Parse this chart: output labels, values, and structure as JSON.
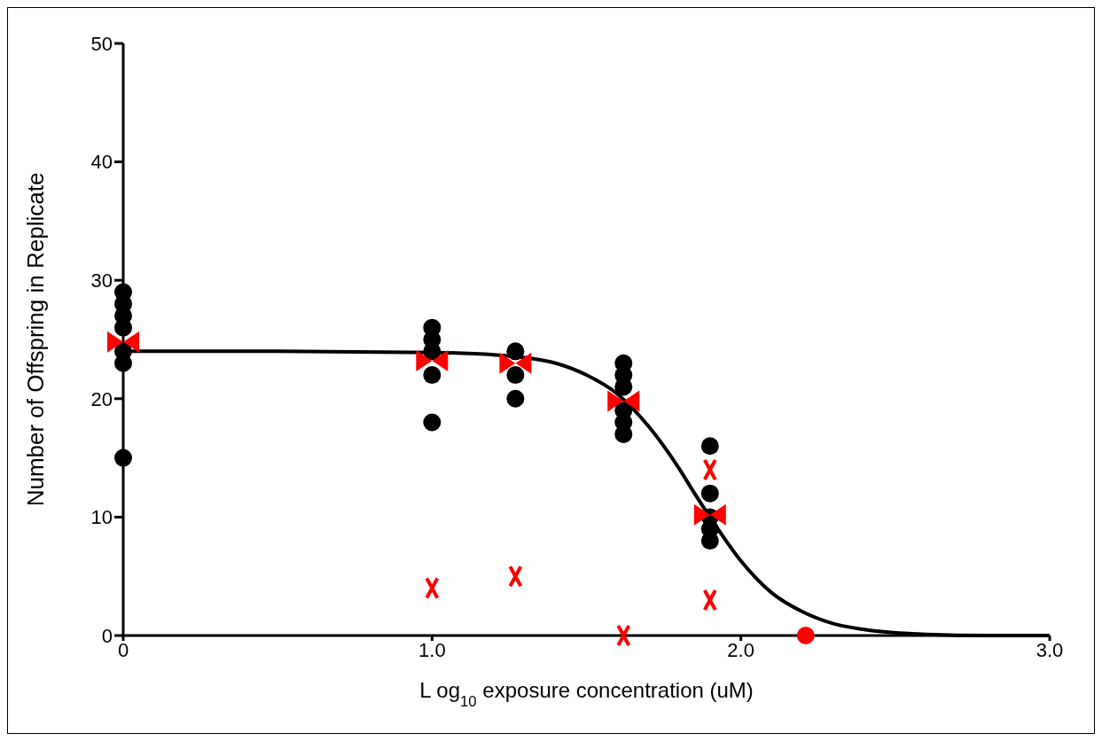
{
  "chart_data": {
    "type": "scatter",
    "xlabel": "L og$_{10}$ exposure concentration (uM)",
    "ylabel": "Number of Offspring in Replicate",
    "xlim": [
      0,
      3
    ],
    "xticks": [
      0,
      {
        "value": 1,
        "label": "1.0"
      },
      {
        "value": 2,
        "label": "2.0"
      },
      {
        "value": 3,
        "label": "3.0"
      }
    ],
    "ylim": [
      0,
      50
    ],
    "yticks": [
      0,
      10,
      20,
      30,
      40,
      50
    ],
    "grid": false,
    "series": [
      {
        "type": "line",
        "color": "#000000",
        "marker": "none",
        "line_style": "solid",
        "x": [
          0,
          0.5,
          1.0,
          1.2,
          1.4,
          1.5,
          1.6,
          1.7,
          1.8,
          1.85,
          1.9,
          2.0,
          2.1,
          2.2,
          2.3,
          2.4,
          2.6,
          2.8,
          3.0
        ],
        "values": [
          24.0,
          24.0,
          23.9,
          23.7,
          23.0,
          22.0,
          20.4,
          17.7,
          14.1,
          12.0,
          10.0,
          6.3,
          3.6,
          2.0,
          1.0,
          0.5,
          0.1,
          0.0,
          0.0
        ]
      },
      {
        "color": "#000000",
        "marker": "circle",
        "x": [
          0,
          0,
          0,
          0,
          0,
          0,
          0,
          1.0,
          1.0,
          1.0,
          1.0,
          1.0,
          1.27,
          1.27,
          1.27,
          1.62,
          1.62,
          1.62,
          1.62,
          1.62,
          1.62,
          1.9,
          1.9,
          1.9,
          1.9,
          1.9
        ],
        "values": [
          29,
          28,
          27,
          26,
          24,
          23,
          15,
          26,
          25,
          24,
          22,
          18,
          24,
          22,
          20,
          23,
          22,
          21,
          19,
          18,
          17,
          16,
          12,
          10,
          9,
          8
        ]
      },
      {
        "color": "#ff0000",
        "marker": "triangle",
        "x": [
          0,
          1.0,
          1.27,
          1.62,
          1.9
        ],
        "values": [
          24.8,
          23.2,
          23.0,
          19.8,
          10.2
        ]
      },
      {
        "color": "#ff0000",
        "marker": "cross",
        "x": [
          1.0,
          1.27,
          1.62,
          1.9,
          1.9
        ],
        "values": [
          4,
          5,
          0,
          14,
          3
        ]
      },
      {
        "color": "#ff0000",
        "marker": "circle",
        "x": [
          2.21
        ],
        "values": [
          0
        ]
      }
    ]
  }
}
